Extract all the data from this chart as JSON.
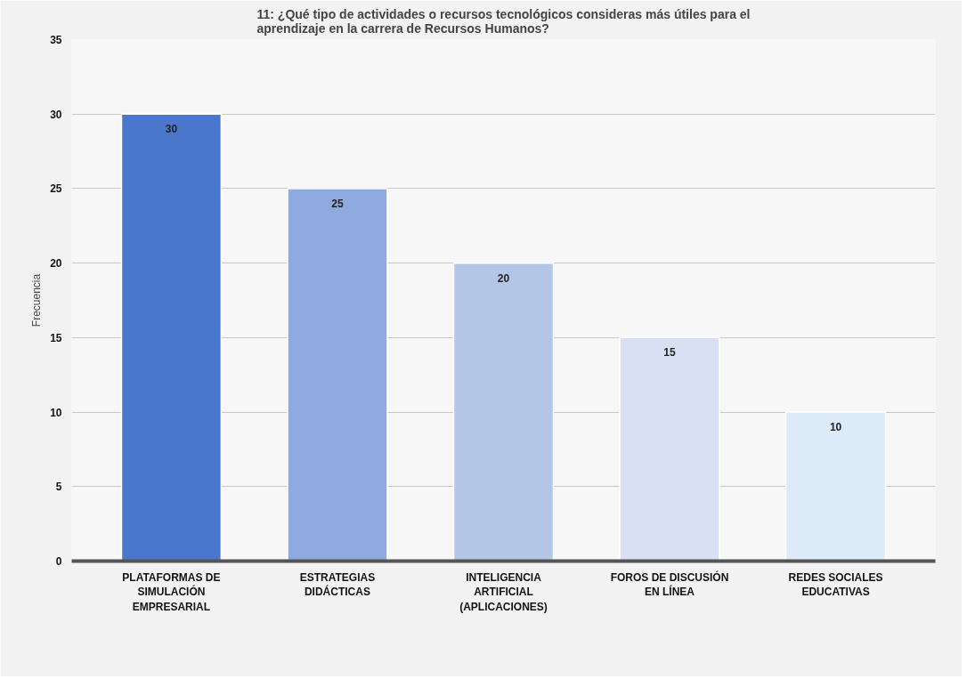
{
  "chart_data": {
    "type": "bar",
    "title": "11: ¿Qué tipo de actividades o recursos tecnológicos consideras más útiles para el aprendizaje en la carrera de Recursos Humanos?",
    "ylabel": "Frecuencia",
    "categories": [
      "PLATAFORMAS DE SIMULACIÓN EMPRESARIAL",
      "ESTRATEGIAS DIDÁCTICAS",
      "INTELIGENCIA ARTIFICIAL (APLICACIONES)",
      "FOROS DE DISCUSIÓN EN LÍNEA",
      "REDES SOCIALES EDUCATIVAS"
    ],
    "values": [
      30,
      25,
      20,
      15,
      10
    ],
    "colors": [
      "#4a77cc",
      "#8eaadf",
      "#b3c6e8",
      "#d8e1f3",
      "#ddeaf8"
    ],
    "ylim": [
      0,
      35
    ],
    "yticks": [
      0,
      5,
      10,
      15,
      20,
      25,
      30,
      35
    ],
    "grid": "y",
    "data_labels": true
  }
}
